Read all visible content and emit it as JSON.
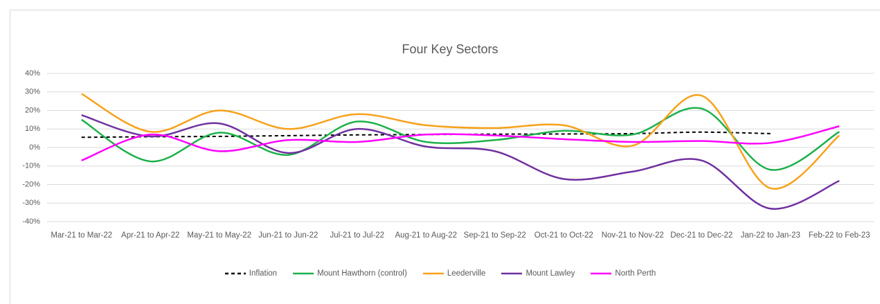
{
  "chart_data": {
    "type": "line",
    "title": "Four Key Sectors",
    "categories": [
      "Mar-21 to Mar-22",
      "Apr-21 to Apr-22",
      "May-21 to May-22",
      "Jun-21 to Jun-22",
      "Jul-21 to Jul-22",
      "Aug-21 to Aug-22",
      "Sep-21 to Sep-22",
      "Oct-21 to Oct-22",
      "Nov-21 to Nov-22",
      "Dec-21 to Dec-22",
      "Jan-22 to Jan-23",
      "Feb-22 to Feb-23"
    ],
    "series": [
      {
        "name": "Inflation",
        "color": "#000000",
        "dashed": true,
        "values": [
          5.5,
          5.8,
          6.0,
          6.4,
          6.8,
          7.0,
          7.2,
          7.3,
          7.5,
          8.3,
          7.5,
          null
        ]
      },
      {
        "name": "Mount Hawthorn (control)",
        "color": "#1db04b",
        "values": [
          15,
          -7.5,
          8,
          -4,
          14,
          3,
          4,
          9,
          7,
          21,
          -12,
          8.5
        ]
      },
      {
        "name": "Leederville",
        "color": "#f7a11a",
        "values": [
          29,
          8.5,
          20,
          10,
          18,
          12,
          10.5,
          12,
          1,
          28,
          -22,
          6.5
        ]
      },
      {
        "name": "Mount Lawley",
        "color": "#7030a0",
        "values": [
          17.5,
          6,
          13,
          -3,
          10,
          0.5,
          -2,
          -17,
          -13,
          -7,
          -33,
          -18
        ]
      },
      {
        "name": "North Perth",
        "color": "#ff00ff",
        "values": [
          -7,
          7,
          -2,
          4,
          3,
          7,
          6.5,
          4.5,
          3,
          3.5,
          2.5,
          11.5
        ]
      }
    ],
    "ylim": [
      -40,
      40
    ],
    "yticks": [
      {
        "value": -40,
        "label": "-40%"
      },
      {
        "value": -30,
        "label": "-30%"
      },
      {
        "value": -20,
        "label": "-20%"
      },
      {
        "value": -10,
        "label": "-10%"
      },
      {
        "value": 0,
        "label": "0%"
      },
      {
        "value": 10,
        "label": "10%"
      },
      {
        "value": 20,
        "label": "20%"
      },
      {
        "value": 30,
        "label": "30%"
      },
      {
        "value": 40,
        "label": "40%"
      }
    ],
    "grid": true,
    "smooth": true,
    "legend": "bottom"
  }
}
